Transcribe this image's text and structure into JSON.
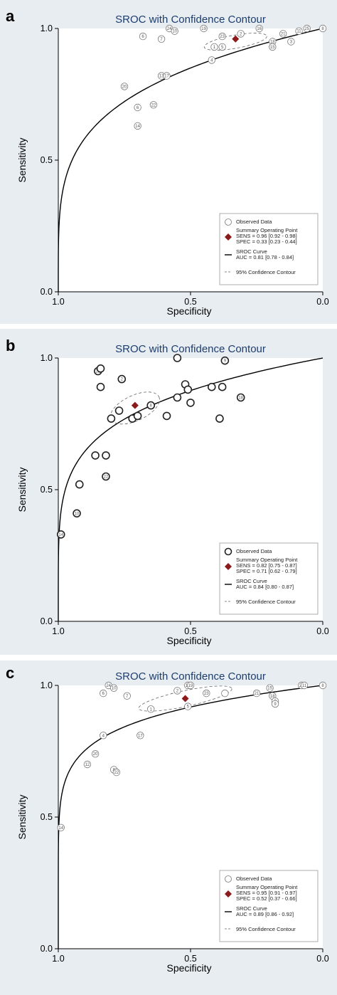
{
  "chart_data": [
    {
      "panel": "a",
      "type": "scatter",
      "title": "SROC with Confidence Contour",
      "xlabel": "Specificity",
      "ylabel": "Sensitivity",
      "xlim": [
        1.0,
        0.0
      ],
      "ylim": [
        0.0,
        1.0
      ],
      "xticks": [
        "1.0",
        "0.5",
        "0.0"
      ],
      "yticks": [
        "0.0",
        "0.5",
        "1.0"
      ],
      "legend": {
        "position": "bottom-right",
        "observed": "Observed Data",
        "summary_title": "Summary Operating  Point",
        "summary_sens": "SENS = 0.96 [0.92 - 0.98]",
        "summary_spec": "SPEC = 0.33 [0.23 - 0.44]",
        "curve_title": "SROC Curve",
        "curve_auc": "AUC = 0.81 [0.78 - 0.84]",
        "contour": "95% Confidence Contour"
      },
      "summary_point": {
        "spec": 0.33,
        "sens": 0.96
      },
      "contour": {
        "cx": 0.33,
        "cy": 0.95,
        "rx": 0.12,
        "ry": 0.025,
        "rot": -10
      },
      "curve_auc": 0.81,
      "points": [
        {
          "id": "20",
          "spec": 0.75,
          "sens": 0.78
        },
        {
          "id": "6",
          "spec": 0.7,
          "sens": 0.7
        },
        {
          "id": "14",
          "spec": 0.7,
          "sens": 0.63
        },
        {
          "id": "22",
          "spec": 0.64,
          "sens": 0.71
        },
        {
          "id": "13",
          "spec": 0.61,
          "sens": 0.82
        },
        {
          "id": "17",
          "spec": 0.59,
          "sens": 0.82
        },
        {
          "id": "6",
          "spec": 0.68,
          "sens": 0.97
        },
        {
          "id": "7",
          "spec": 0.61,
          "sens": 0.96
        },
        {
          "id": "24",
          "spec": 0.58,
          "sens": 1.0
        },
        {
          "id": "10",
          "spec": 0.56,
          "sens": 0.99
        },
        {
          "id": "19",
          "spec": 0.45,
          "sens": 1.0
        },
        {
          "id": "23",
          "spec": 0.38,
          "sens": 0.97
        },
        {
          "id": "2",
          "spec": 0.31,
          "sens": 0.98
        },
        {
          "id": "16",
          "spec": 0.24,
          "sens": 1.0
        },
        {
          "id": "21",
          "spec": 0.15,
          "sens": 0.98
        },
        {
          "id": "18",
          "spec": 0.19,
          "sens": 0.95
        },
        {
          "id": "15",
          "spec": 0.19,
          "sens": 0.93
        },
        {
          "id": "3",
          "spec": 0.12,
          "sens": 0.95
        },
        {
          "id": "11",
          "spec": 0.09,
          "sens": 0.99
        },
        {
          "id": "4",
          "spec": 0.42,
          "sens": 0.88
        },
        {
          "id": "1",
          "spec": 0.41,
          "sens": 0.93
        },
        {
          "id": "5",
          "spec": 0.38,
          "sens": 0.93
        },
        {
          "id": "25",
          "spec": 0.06,
          "sens": 1.0
        },
        {
          "id": "8",
          "spec": 0.0,
          "sens": 1.0
        }
      ]
    },
    {
      "panel": "b",
      "type": "scatter",
      "title": "SROC with Confidence Contour",
      "xlabel": "Specificity",
      "ylabel": "Sensitivity",
      "xlim": [
        1.0,
        0.0
      ],
      "ylim": [
        0.0,
        1.0
      ],
      "xticks": [
        "1.0",
        "0.5",
        "0.0"
      ],
      "yticks": [
        "0.0",
        "0.5",
        "1.0"
      ],
      "legend": {
        "position": "bottom-right",
        "observed": "Observed Data",
        "summary_title": "Summary Operating  Point",
        "summary_sens": "SENS = 0.82 [0.75 - 0.87]",
        "summary_spec": "SPEC = 0.71 [0.62 - 0.79]",
        "curve_title": "SROC Curve",
        "curve_auc": "AUC = 0.84 [0.80 - 0.87]",
        "contour": "95% Confidence Contour"
      },
      "summary_point": {
        "spec": 0.71,
        "sens": 0.82
      },
      "contour": {
        "cx": 0.71,
        "cy": 0.81,
        "rx": 0.1,
        "ry": 0.048,
        "rot": -25
      },
      "curve_auc": 0.84,
      "points": [
        {
          "id": "23",
          "spec": 0.85,
          "sens": 0.95
        },
        {
          "id": "",
          "spec": 0.84,
          "sens": 0.96
        },
        {
          "id": "2",
          "spec": 0.76,
          "sens": 0.92
        },
        {
          "id": "",
          "spec": 0.84,
          "sens": 0.89
        },
        {
          "id": "",
          "spec": 0.8,
          "sens": 0.77
        },
        {
          "id": "",
          "spec": 0.77,
          "sens": 0.8
        },
        {
          "id": "",
          "spec": 0.72,
          "sens": 0.77
        },
        {
          "id": "",
          "spec": 0.7,
          "sens": 0.78
        },
        {
          "id": "8",
          "spec": 0.65,
          "sens": 0.82
        },
        {
          "id": "",
          "spec": 0.59,
          "sens": 0.78
        },
        {
          "id": "",
          "spec": 0.55,
          "sens": 1.0
        },
        {
          "id": "",
          "spec": 0.52,
          "sens": 0.9
        },
        {
          "id": "",
          "spec": 0.51,
          "sens": 0.88
        },
        {
          "id": "",
          "spec": 0.55,
          "sens": 0.85
        },
        {
          "id": "",
          "spec": 0.5,
          "sens": 0.83
        },
        {
          "id": "",
          "spec": 0.42,
          "sens": 0.89
        },
        {
          "id": "",
          "spec": 0.38,
          "sens": 0.89
        },
        {
          "id": "9",
          "spec": 0.37,
          "sens": 0.99
        },
        {
          "id": "",
          "spec": 0.39,
          "sens": 0.77
        },
        {
          "id": "18",
          "spec": 0.31,
          "sens": 0.85
        },
        {
          "id": "",
          "spec": 0.86,
          "sens": 0.63
        },
        {
          "id": "",
          "spec": 0.82,
          "sens": 0.63
        },
        {
          "id": "22",
          "spec": 0.82,
          "sens": 0.55
        },
        {
          "id": "",
          "spec": 0.92,
          "sens": 0.52
        },
        {
          "id": "10",
          "spec": 0.93,
          "sens": 0.41
        },
        {
          "id": "14",
          "spec": 0.99,
          "sens": 0.33
        }
      ]
    },
    {
      "panel": "c",
      "type": "scatter",
      "title": "SROC with Confidence Contour",
      "xlabel": "Specificity",
      "ylabel": "Sensitivity",
      "xlim": [
        1.0,
        0.0
      ],
      "ylim": [
        0.0,
        1.0
      ],
      "xticks": [
        "1.0",
        "0.5",
        "0.0"
      ],
      "yticks": [
        "0.0",
        "0.5",
        "1.0"
      ],
      "legend": {
        "position": "bottom-right",
        "observed": "Observed Data",
        "summary_title": "Summary Operating  Point",
        "summary_sens": "SENS = 0.95 [0.91 - 0.97]",
        "summary_spec": "SPEC = 0.52 [0.37 - 0.66]",
        "curve_title": "SROC Curve",
        "curve_auc": "AUC = 0.89 [0.86 - 0.92]",
        "contour": "95% Confidence Contour"
      },
      "summary_point": {
        "spec": 0.52,
        "sens": 0.95
      },
      "contour": {
        "cx": 0.52,
        "cy": 0.95,
        "rx": 0.18,
        "ry": 0.03,
        "rot": -12
      },
      "curve_auc": 0.89,
      "points": [
        {
          "id": "14",
          "spec": 0.99,
          "sens": 0.46
        },
        {
          "id": "12",
          "spec": 0.89,
          "sens": 0.7
        },
        {
          "id": "20",
          "spec": 0.86,
          "sens": 0.74
        },
        {
          "id": "4",
          "spec": 0.83,
          "sens": 0.81
        },
        {
          "id": "8",
          "spec": 0.79,
          "sens": 0.68
        },
        {
          "id": "22",
          "spec": 0.78,
          "sens": 0.67
        },
        {
          "id": "17",
          "spec": 0.69,
          "sens": 0.81
        },
        {
          "id": "1",
          "spec": 0.65,
          "sens": 0.91
        },
        {
          "id": "6",
          "spec": 0.83,
          "sens": 0.97
        },
        {
          "id": "24",
          "spec": 0.81,
          "sens": 1.0
        },
        {
          "id": "10",
          "spec": 0.79,
          "sens": 0.99
        },
        {
          "id": "7",
          "spec": 0.74,
          "sens": 0.96
        },
        {
          "id": "2",
          "spec": 0.55,
          "sens": 0.98
        },
        {
          "id": "16",
          "spec": 0.51,
          "sens": 1.0
        },
        {
          "id": "19",
          "spec": 0.5,
          "sens": 1.0
        },
        {
          "id": "5",
          "spec": 0.51,
          "sens": 0.92
        },
        {
          "id": "23",
          "spec": 0.44,
          "sens": 0.97
        },
        {
          "id": "",
          "spec": 0.37,
          "sens": 0.97
        },
        {
          "id": "21",
          "spec": 0.25,
          "sens": 0.97
        },
        {
          "id": "15",
          "spec": 0.2,
          "sens": 0.99
        },
        {
          "id": "18",
          "spec": 0.19,
          "sens": 0.96
        },
        {
          "id": "3",
          "spec": 0.18,
          "sens": 0.94
        },
        {
          "id": "9",
          "spec": 0.18,
          "sens": 0.93
        },
        {
          "id": "25",
          "spec": 0.08,
          "sens": 1.0
        },
        {
          "id": "11",
          "spec": 0.07,
          "sens": 1.0
        },
        {
          "id": "8",
          "spec": 0.0,
          "sens": 1.0
        }
      ]
    }
  ]
}
